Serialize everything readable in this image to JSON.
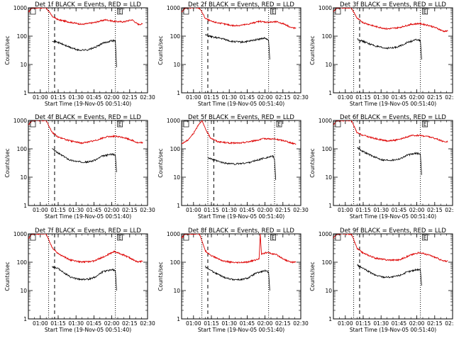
{
  "chart_data": {
    "type": "line",
    "time_ticks": [
      "01:00",
      "01:15",
      "01:30",
      "01:45",
      "02:00",
      "02:15",
      "02:30"
    ],
    "x_range_min": [
      0,
      100
    ],
    "ylabel": "Counts/sec",
    "xlabel": "Start Time (19-Nov-05 00:51:40)",
    "yscale": "log",
    "ylim": [
      1,
      1000
    ],
    "y_ticks": [
      1,
      10,
      100,
      1000
    ],
    "corner_label": "E",
    "colors": {
      "events": "#000000",
      "lld": "#dd0000"
    },
    "panels": [
      {
        "title": "Det 1f BLACK = Events, RED = LLD",
        "markers": {
          "dotted": [
            17,
            73
          ],
          "dashed": [
            22
          ]
        },
        "lld": [
          [
            0,
            700
          ],
          [
            3,
            1000
          ],
          [
            6,
            1000
          ],
          [
            10,
            1000
          ],
          [
            15,
            1000
          ],
          [
            20,
            500
          ],
          [
            25,
            380
          ],
          [
            35,
            310
          ],
          [
            45,
            260
          ],
          [
            55,
            300
          ],
          [
            65,
            380
          ],
          [
            72,
            330
          ],
          [
            80,
            320
          ],
          [
            87,
            380
          ],
          [
            92,
            260
          ],
          [
            96,
            270
          ]
        ],
        "events": [
          [
            20,
            70
          ],
          [
            25,
            60
          ],
          [
            35,
            40
          ],
          [
            42,
            32
          ],
          [
            50,
            33
          ],
          [
            56,
            40
          ],
          [
            62,
            55
          ],
          [
            70,
            70
          ],
          [
            73,
            68
          ],
          [
            74,
            8
          ]
        ]
      },
      {
        "title": "Det 2f BLACK = Events, RED = LLD",
        "markers": {
          "dotted": [
            17,
            73
          ],
          "dashed": [
            22
          ]
        },
        "lld": [
          [
            0,
            700
          ],
          [
            3,
            1000
          ],
          [
            6,
            1000
          ],
          [
            10,
            1000
          ],
          [
            15,
            1000
          ],
          [
            20,
            420
          ],
          [
            25,
            330
          ],
          [
            35,
            270
          ],
          [
            45,
            230
          ],
          [
            55,
            260
          ],
          [
            65,
            330
          ],
          [
            72,
            310
          ],
          [
            80,
            320
          ],
          [
            87,
            260
          ],
          [
            92,
            200
          ],
          [
            96,
            190
          ]
        ],
        "events": [
          [
            20,
            110
          ],
          [
            25,
            95
          ],
          [
            35,
            80
          ],
          [
            42,
            65
          ],
          [
            50,
            62
          ],
          [
            56,
            65
          ],
          [
            62,
            75
          ],
          [
            70,
            85
          ],
          [
            73,
            70
          ],
          [
            74,
            15
          ]
        ]
      },
      {
        "title": "Det 3f BLACK = Events, RED = LLD",
        "markers": {
          "dotted": [
            17,
            73
          ],
          "dashed": [
            22
          ]
        },
        "lld": [
          [
            0,
            700
          ],
          [
            3,
            1000
          ],
          [
            6,
            1000
          ],
          [
            10,
            1000
          ],
          [
            15,
            1000
          ],
          [
            20,
            420
          ],
          [
            25,
            300
          ],
          [
            35,
            220
          ],
          [
            45,
            180
          ],
          [
            55,
            200
          ],
          [
            65,
            260
          ],
          [
            72,
            280
          ],
          [
            80,
            240
          ],
          [
            87,
            190
          ],
          [
            92,
            150
          ],
          [
            96,
            150
          ]
        ],
        "events": [
          [
            20,
            80
          ],
          [
            25,
            65
          ],
          [
            35,
            45
          ],
          [
            42,
            38
          ],
          [
            50,
            38
          ],
          [
            56,
            45
          ],
          [
            62,
            60
          ],
          [
            70,
            75
          ],
          [
            73,
            70
          ],
          [
            74,
            15
          ]
        ]
      },
      {
        "title": "Det 4f BLACK = Events, RED = LLD",
        "markers": {
          "dotted": [
            17,
            73
          ],
          "dashed": [
            22
          ]
        },
        "lld": [
          [
            0,
            700
          ],
          [
            3,
            1000
          ],
          [
            6,
            1000
          ],
          [
            10,
            1000
          ],
          [
            15,
            1000
          ],
          [
            20,
            380
          ],
          [
            25,
            260
          ],
          [
            35,
            190
          ],
          [
            45,
            160
          ],
          [
            55,
            190
          ],
          [
            65,
            260
          ],
          [
            72,
            280
          ],
          [
            80,
            250
          ],
          [
            87,
            200
          ],
          [
            92,
            160
          ],
          [
            96,
            170
          ]
        ],
        "events": [
          [
            20,
            100
          ],
          [
            25,
            70
          ],
          [
            35,
            40
          ],
          [
            42,
            35
          ],
          [
            50,
            34
          ],
          [
            56,
            40
          ],
          [
            62,
            55
          ],
          [
            70,
            65
          ],
          [
            73,
            60
          ],
          [
            74,
            15
          ]
        ]
      },
      {
        "title": "Det 5f BLACK = Events, RED = LLD",
        "markers": {
          "dotted": [
            22,
            78
          ],
          "dashed": [
            27
          ]
        },
        "lld": [
          [
            0,
            150
          ],
          [
            5,
            200
          ],
          [
            10,
            350
          ],
          [
            14,
            700
          ],
          [
            17,
            1000
          ],
          [
            20,
            500
          ],
          [
            24,
            250
          ],
          [
            30,
            180
          ],
          [
            40,
            160
          ],
          [
            50,
            160
          ],
          [
            60,
            190
          ],
          [
            70,
            230
          ],
          [
            78,
            220
          ],
          [
            87,
            190
          ],
          [
            92,
            160
          ],
          [
            96,
            150
          ]
        ],
        "events": [
          [
            22,
            50
          ],
          [
            27,
            40
          ],
          [
            35,
            32
          ],
          [
            45,
            29
          ],
          [
            55,
            32
          ],
          [
            62,
            38
          ],
          [
            70,
            48
          ],
          [
            77,
            55
          ],
          [
            78,
            40
          ],
          [
            79,
            8
          ]
        ]
      },
      {
        "title": "Det 6f BLACK = Events, RED = LLD",
        "markers": {
          "dotted": [
            17,
            73
          ],
          "dashed": [
            22
          ]
        },
        "lld": [
          [
            0,
            700
          ],
          [
            3,
            1000
          ],
          [
            6,
            1000
          ],
          [
            10,
            1000
          ],
          [
            15,
            1000
          ],
          [
            20,
            360
          ],
          [
            25,
            300
          ],
          [
            35,
            230
          ],
          [
            45,
            190
          ],
          [
            55,
            210
          ],
          [
            65,
            290
          ],
          [
            72,
            300
          ],
          [
            80,
            270
          ],
          [
            87,
            220
          ],
          [
            92,
            180
          ],
          [
            96,
            180
          ]
        ],
        "events": [
          [
            20,
            110
          ],
          [
            25,
            80
          ],
          [
            35,
            50
          ],
          [
            42,
            40
          ],
          [
            50,
            40
          ],
          [
            56,
            45
          ],
          [
            62,
            60
          ],
          [
            70,
            70
          ],
          [
            73,
            65
          ],
          [
            74,
            12
          ]
        ]
      },
      {
        "title": "Det 7f BLACK = Events, RED = LLD",
        "markers": {
          "dotted": [
            17,
            73
          ],
          "dashed": [
            22
          ]
        },
        "lld": [
          [
            0,
            700
          ],
          [
            3,
            1000
          ],
          [
            6,
            1000
          ],
          [
            10,
            1000
          ],
          [
            15,
            1000
          ],
          [
            20,
            320
          ],
          [
            25,
            200
          ],
          [
            35,
            120
          ],
          [
            45,
            100
          ],
          [
            55,
            110
          ],
          [
            65,
            170
          ],
          [
            72,
            240
          ],
          [
            80,
            180
          ],
          [
            87,
            130
          ],
          [
            92,
            100
          ],
          [
            96,
            110
          ]
        ],
        "events": [
          [
            20,
            70
          ],
          [
            25,
            60
          ],
          [
            35,
            30
          ],
          [
            42,
            25
          ],
          [
            50,
            25
          ],
          [
            56,
            30
          ],
          [
            62,
            45
          ],
          [
            70,
            55
          ],
          [
            73,
            50
          ],
          [
            74,
            10
          ]
        ]
      },
      {
        "title": "Det 8f BLACK = Events, RED = LLD",
        "markers": {
          "dotted": [
            17,
            73
          ],
          "dashed": [
            22
          ]
        },
        "lld": [
          [
            0,
            700
          ],
          [
            3,
            1000
          ],
          [
            6,
            1000
          ],
          [
            10,
            1000
          ],
          [
            15,
            1000
          ],
          [
            20,
            250
          ],
          [
            25,
            170
          ],
          [
            35,
            110
          ],
          [
            45,
            95
          ],
          [
            55,
            100
          ],
          [
            65,
            130
          ],
          [
            66,
            1000
          ],
          [
            67,
            200
          ],
          [
            72,
            220
          ],
          [
            80,
            180
          ],
          [
            87,
            120
          ],
          [
            92,
            100
          ],
          [
            96,
            100
          ]
        ],
        "events": [
          [
            20,
            70
          ],
          [
            25,
            50
          ],
          [
            35,
            30
          ],
          [
            42,
            25
          ],
          [
            50,
            24
          ],
          [
            56,
            28
          ],
          [
            62,
            40
          ],
          [
            70,
            50
          ],
          [
            73,
            45
          ],
          [
            74,
            10
          ]
        ]
      },
      {
        "title": "Det 9f BLACK = Events, RED = LLD",
        "markers": {
          "dotted": [
            17,
            73
          ],
          "dashed": [
            22
          ]
        },
        "lld": [
          [
            0,
            700
          ],
          [
            3,
            1000
          ],
          [
            6,
            1000
          ],
          [
            10,
            1000
          ],
          [
            15,
            1000
          ],
          [
            20,
            300
          ],
          [
            25,
            210
          ],
          [
            35,
            140
          ],
          [
            45,
            120
          ],
          [
            55,
            120
          ],
          [
            65,
            180
          ],
          [
            72,
            220
          ],
          [
            80,
            180
          ],
          [
            87,
            140
          ],
          [
            92,
            110
          ],
          [
            96,
            110
          ]
        ],
        "events": [
          [
            20,
            80
          ],
          [
            25,
            60
          ],
          [
            35,
            35
          ],
          [
            42,
            30
          ],
          [
            50,
            30
          ],
          [
            56,
            35
          ],
          [
            62,
            45
          ],
          [
            70,
            55
          ],
          [
            73,
            55
          ],
          [
            74,
            15
          ]
        ]
      }
    ]
  }
}
